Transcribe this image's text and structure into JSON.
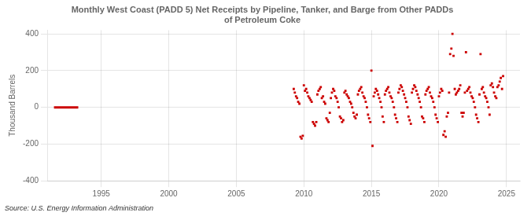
{
  "chart_data": {
    "type": "scatter",
    "title": "Monthly West Coast (PADD 5) Net Receipts by Pipeline, Tanker, and Barge from Other PADDs\nof Petroleum Coke",
    "ylabel": "Thousand Barrels",
    "source": "Source: U.S. Energy Information Administration",
    "xlim": [
      1991,
      2026
    ],
    "ylim": [
      -400,
      420
    ],
    "xticks": [
      1995,
      2000,
      2005,
      2010,
      2015,
      2020,
      2025
    ],
    "yticks": [
      -400,
      -200,
      0,
      200,
      400
    ],
    "grid": true,
    "series": [
      {
        "type": "line",
        "color": "#cc0000",
        "x": [
          1991.5,
          1991.6,
          1991.7,
          1991.8,
          1991.9,
          1992.0,
          1992.1,
          1992.2,
          1992.3,
          1992.4,
          1992.5,
          1992.6,
          1992.7,
          1992.8,
          1992.9,
          1993.0,
          1993.1,
          1993.2,
          1993.3
        ],
        "values": [
          0,
          0,
          0,
          0,
          0,
          0,
          0,
          0,
          0,
          0,
          0,
          0,
          0,
          0,
          0,
          0,
          0,
          0,
          0
        ]
      },
      {
        "type": "scatter",
        "color": "#cc0000",
        "marker": "square",
        "x": [
          2009.25,
          2009.33,
          2009.42,
          2009.5,
          2009.58,
          2009.67,
          2009.75,
          2009.83,
          2009.92,
          2010.0,
          2010.08,
          2010.17,
          2010.25,
          2010.33,
          2010.42,
          2010.5,
          2010.58,
          2010.67,
          2010.75,
          2010.83,
          2010.92,
          2011.0,
          2011.08,
          2011.17,
          2011.25,
          2011.33,
          2011.42,
          2011.5,
          2011.58,
          2011.67,
          2011.75,
          2011.83,
          2011.92,
          2012.0,
          2012.08,
          2012.17,
          2012.25,
          2012.33,
          2012.42,
          2012.5,
          2012.58,
          2012.67,
          2012.75,
          2012.83,
          2012.92,
          2013.0,
          2013.08,
          2013.17,
          2013.25,
          2013.33,
          2013.42,
          2013.5,
          2013.58,
          2013.67,
          2013.75,
          2013.83,
          2013.92,
          2014.0,
          2014.08,
          2014.17,
          2014.25,
          2014.33,
          2014.42,
          2014.5,
          2014.58,
          2014.67,
          2014.75,
          2014.83,
          2014.92,
          2015.0,
          2015.08,
          2015.17,
          2015.25,
          2015.33,
          2015.42,
          2015.5,
          2015.58,
          2015.67,
          2015.75,
          2015.83,
          2015.92,
          2016.0,
          2016.08,
          2016.17,
          2016.25,
          2016.33,
          2016.42,
          2016.5,
          2016.58,
          2016.67,
          2016.75,
          2016.83,
          2016.92,
          2017.0,
          2017.08,
          2017.17,
          2017.25,
          2017.33,
          2017.42,
          2017.5,
          2017.58,
          2017.67,
          2017.75,
          2017.83,
          2017.92,
          2018.0,
          2018.08,
          2018.17,
          2018.25,
          2018.33,
          2018.42,
          2018.5,
          2018.58,
          2018.67,
          2018.75,
          2018.83,
          2018.92,
          2019.0,
          2019.08,
          2019.17,
          2019.25,
          2019.33,
          2019.42,
          2019.5,
          2019.58,
          2019.67,
          2019.75,
          2019.83,
          2019.92,
          2020.0,
          2020.08,
          2020.17,
          2020.25,
          2020.33,
          2020.42,
          2020.5,
          2020.58,
          2020.67,
          2020.75,
          2020.83,
          2020.92,
          2021.0,
          2021.08,
          2021.17,
          2021.25,
          2021.33,
          2021.42,
          2021.5,
          2021.58,
          2021.67,
          2021.75,
          2021.83,
          2021.92,
          2022.0,
          2022.08,
          2022.17,
          2022.25,
          2022.33,
          2022.42,
          2022.5,
          2022.58,
          2022.67,
          2022.75,
          2022.83,
          2022.92,
          2023.0,
          2023.08,
          2023.17,
          2023.25,
          2023.33,
          2023.42,
          2023.5,
          2023.58,
          2023.67,
          2023.75,
          2023.83,
          2023.92,
          2024.0,
          2024.08,
          2024.17,
          2024.25,
          2024.33,
          2024.42,
          2024.5,
          2024.58,
          2024.67,
          2024.75
        ],
        "values": [
          100,
          80,
          60,
          50,
          30,
          20,
          -160,
          -170,
          -155,
          120,
          90,
          100,
          80,
          60,
          50,
          40,
          30,
          -80,
          -90,
          -100,
          -80,
          70,
          90,
          100,
          110,
          50,
          60,
          30,
          20,
          -60,
          -70,
          -80,
          -30,
          50,
          80,
          100,
          90,
          60,
          50,
          30,
          0,
          -50,
          -60,
          -80,
          -70,
          80,
          90,
          70,
          60,
          50,
          30,
          20,
          0,
          -30,
          -50,
          -60,
          -40,
          70,
          90,
          100,
          110,
          80,
          60,
          50,
          30,
          0,
          -40,
          -60,
          -80,
          200,
          -210,
          60,
          80,
          100,
          90,
          70,
          50,
          30,
          0,
          -50,
          -80,
          70,
          90,
          100,
          110,
          80,
          60,
          50,
          30,
          0,
          -40,
          -60,
          -80,
          80,
          100,
          120,
          110,
          90,
          70,
          50,
          30,
          0,
          -50,
          -70,
          -90,
          80,
          100,
          120,
          110,
          90,
          70,
          50,
          30,
          0,
          -50,
          -60,
          -80,
          70,
          90,
          100,
          110,
          80,
          60,
          50,
          30,
          0,
          -40,
          -60,
          -80,
          60,
          80,
          100,
          90,
          -150,
          -130,
          -160,
          -50,
          -30,
          80,
          290,
          320,
          400,
          280,
          100,
          70,
          80,
          90,
          100,
          120,
          -30,
          -50,
          -30,
          80,
          300,
          90,
          100,
          110,
          80,
          60,
          50,
          30,
          0,
          -40,
          -60,
          -80,
          70,
          290,
          100,
          110,
          80,
          60,
          50,
          30,
          0,
          -40,
          120,
          130,
          110,
          80,
          60,
          50,
          110,
          120,
          140,
          160,
          100,
          170
        ]
      }
    ]
  }
}
